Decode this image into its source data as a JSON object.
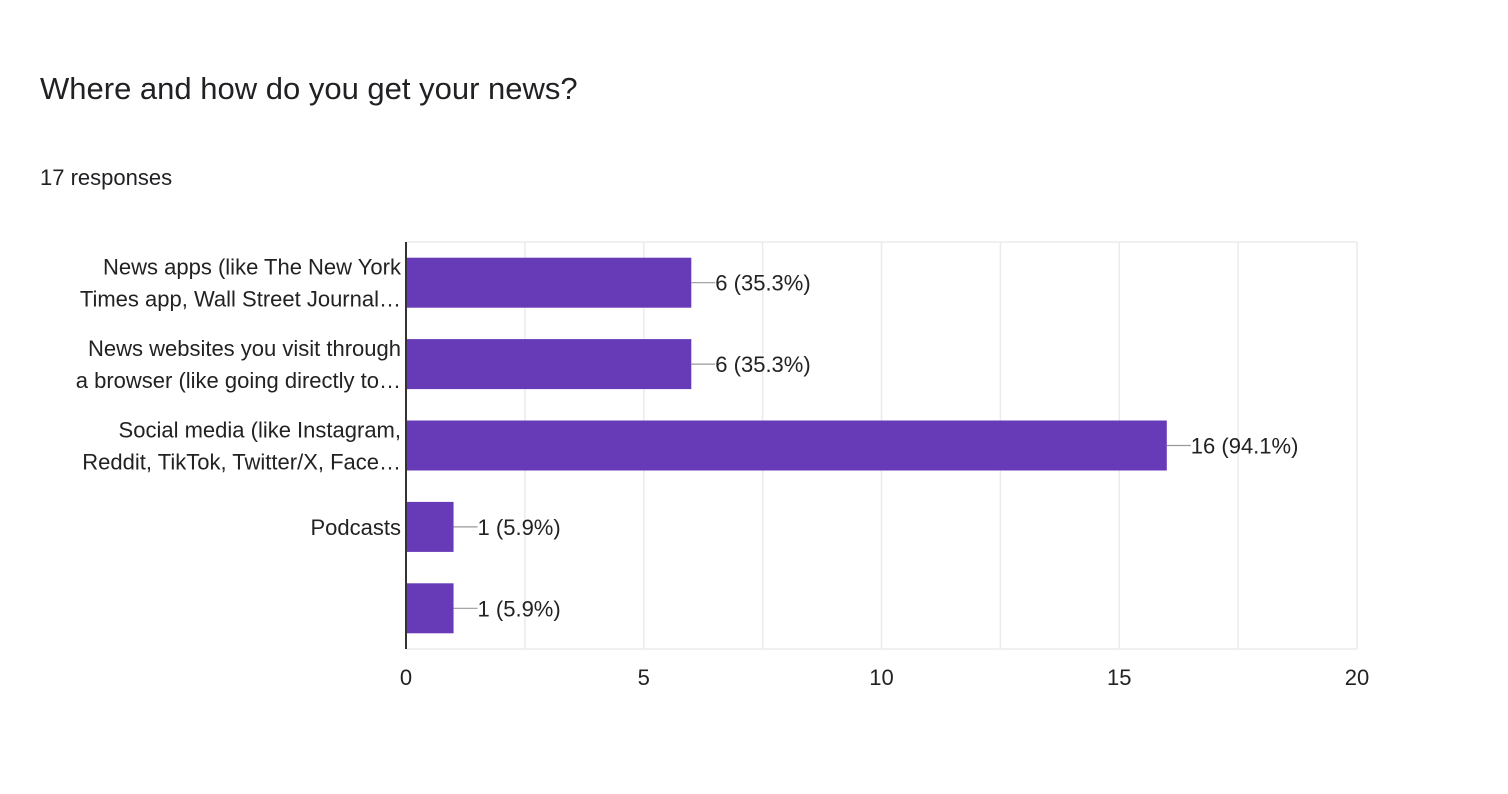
{
  "question": {
    "title": "Where and how do you get your news?",
    "responses": "17 responses"
  },
  "chart_data": {
    "type": "bar",
    "orientation": "horizontal",
    "categories": [
      [
        "News apps (like The New York",
        "Times app, Wall Street Journal…"
      ],
      [
        "News websites you visit through",
        "a browser (like going directly to…"
      ],
      [
        "Social media (like Instagram,",
        "Reddit, TikTok, Twitter/X, Face…"
      ],
      [
        "Podcasts"
      ],
      []
    ],
    "values": [
      6,
      6,
      16,
      1,
      1
    ],
    "data_labels": [
      "6 (35.3%)",
      "6 (35.3%)",
      "16 (94.1%)",
      "1 (5.9%)",
      "1 (5.9%)"
    ],
    "xlim": [
      0,
      20
    ],
    "x_ticks": [
      0,
      5,
      10,
      15,
      20
    ],
    "grid": true,
    "bar_color": "#673ab7",
    "grid_color": "#ebebeb",
    "axis_color": "#333333"
  }
}
